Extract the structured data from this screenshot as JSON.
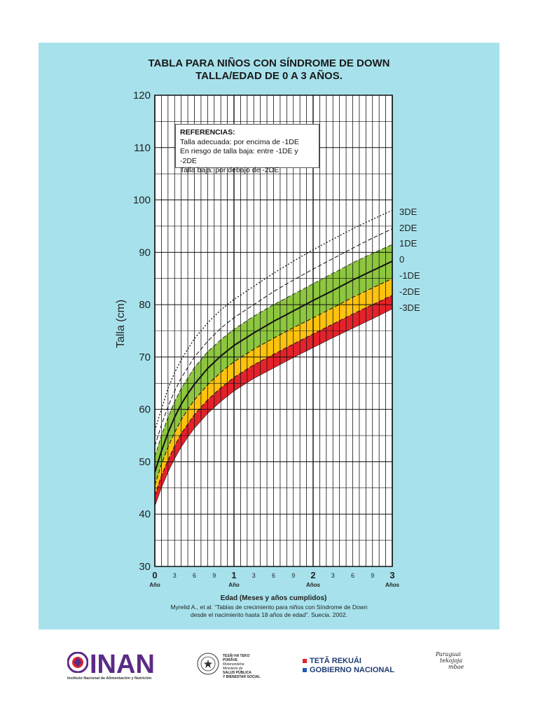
{
  "title": {
    "line1": "TABLA PARA NIÑOS CON SÍNDROME DE DOWN",
    "line2": "TALLA/EDAD DE 0 A 3 AÑOS."
  },
  "references": {
    "heading": "REFERENCIAS:",
    "items": [
      "Talla adecuada: por encima de -1DE",
      "En riesgo de talla baja: entre -1DE y -2DE",
      "Talla baja: por debajo de -2DE"
    ]
  },
  "citation": {
    "line1": "Myrelid A., et al. “Tablas de crecimiento para niños con Síndrome de Down",
    "line2": "desde el nacimiento hasta 18 años de edad”. Suecia. 2002."
  },
  "footer": {
    "inan_name": "INAN",
    "inan_full": "Instituto Nacional de Alimentación y Nutrición",
    "ministry": [
      "TESÃI HA TEKO",
      "PORÃVE",
      "Motenondeha",
      "Ministerio de",
      "SALUD PÚBLICA",
      "Y BIENESTAR SOCIAL"
    ],
    "gov": [
      "TETÃ REKUÁI",
      "GOBIERNO NACIONAL"
    ],
    "slogan": [
      "Paraguai",
      "tekojoja",
      "mbae"
    ]
  },
  "colors": {
    "background": "#a7e2ec",
    "green": "#8dc63f",
    "yellow": "#ffc20e",
    "red": "#e4222a",
    "inan_purple": "#5b2a86"
  },
  "chart_data": {
    "type": "line",
    "title": "TABLA PARA NIÑOS CON SÍNDROME DE DOWN TALLA/EDAD DE 0 A 3 AÑOS.",
    "xlabel": "Edad (Meses y años cumplidos)",
    "ylabel": "Talla (cm)",
    "xlim": [
      0,
      36
    ],
    "ylim": [
      30,
      120
    ],
    "grid": true,
    "x_ticks_minor": [
      {
        "m": 3,
        "label": "3"
      },
      {
        "m": 6,
        "label": "6"
      },
      {
        "m": 9,
        "label": "9"
      },
      {
        "m": 15,
        "label": "3"
      },
      {
        "m": 18,
        "label": "6"
      },
      {
        "m": 21,
        "label": "9"
      },
      {
        "m": 27,
        "label": "3"
      },
      {
        "m": 30,
        "label": "6"
      },
      {
        "m": 33,
        "label": "9"
      }
    ],
    "x_ticks_major": [
      {
        "m": 0,
        "label": "0",
        "unit": "Año"
      },
      {
        "m": 12,
        "label": "1",
        "unit": "Año"
      },
      {
        "m": 24,
        "label": "2",
        "unit": "Años"
      },
      {
        "m": 36,
        "label": "3",
        "unit": "Años"
      }
    ],
    "y_ticks": [
      30,
      40,
      50,
      60,
      70,
      80,
      90,
      100,
      110,
      120
    ],
    "x": [
      0,
      1,
      2,
      3,
      4,
      5,
      6,
      8,
      10,
      12,
      15,
      18,
      21,
      24,
      27,
      30,
      33,
      36
    ],
    "series": [
      {
        "name": "3DE",
        "style": "dotted",
        "values": [
          56,
          60,
          64,
          67,
          69.5,
          71.5,
          73.5,
          76.5,
          79,
          81,
          83.5,
          86,
          88.3,
          90.5,
          92.5,
          94.5,
          96.3,
          98
        ]
      },
      {
        "name": "2DE",
        "style": "dashed",
        "values": [
          53,
          57,
          60.5,
          63.5,
          66,
          68,
          70,
          73,
          75.5,
          77.5,
          80,
          82.5,
          84.7,
          86.8,
          88.8,
          90.8,
          92.7,
          94.5
        ]
      },
      {
        "name": "1DE",
        "style": "green-top",
        "values": [
          51,
          55,
          58.5,
          61.5,
          64,
          66,
          68,
          71,
          73.3,
          75.3,
          77.8,
          80,
          82,
          84,
          86,
          88,
          89.8,
          91.5
        ]
      },
      {
        "name": "0",
        "style": "solid",
        "values": [
          48,
          52,
          55.5,
          58.5,
          61,
          63,
          64.8,
          67.8,
          70.2,
          72.2,
          74.6,
          76.8,
          78.8,
          80.8,
          82.7,
          84.7,
          86.5,
          88.3
        ]
      },
      {
        "name": "-1DE",
        "style": "dashed",
        "values": [
          45.5,
          49.5,
          52.8,
          55.6,
          58,
          60,
          61.8,
          64.7,
          67.1,
          69.1,
          71.5,
          73.6,
          75.6,
          77.5,
          79.4,
          81.4,
          83.2,
          85
        ]
      },
      {
        "name": "-2DE",
        "style": "dashed",
        "values": [
          43.5,
          47.3,
          50.3,
          53,
          55.4,
          57.2,
          59,
          61.8,
          64.1,
          66.1,
          68.5,
          70.5,
          72.5,
          74.4,
          76.3,
          78.2,
          80,
          81.8
        ]
      },
      {
        "name": "-3DE",
        "style": "red-bottom",
        "values": [
          41.5,
          45,
          48,
          50.6,
          52.8,
          54.7,
          56.4,
          59.2,
          61.5,
          63.5,
          65.9,
          67.9,
          69.9,
          71.8,
          73.7,
          75.5,
          77.3,
          79.2
        ]
      }
    ]
  }
}
